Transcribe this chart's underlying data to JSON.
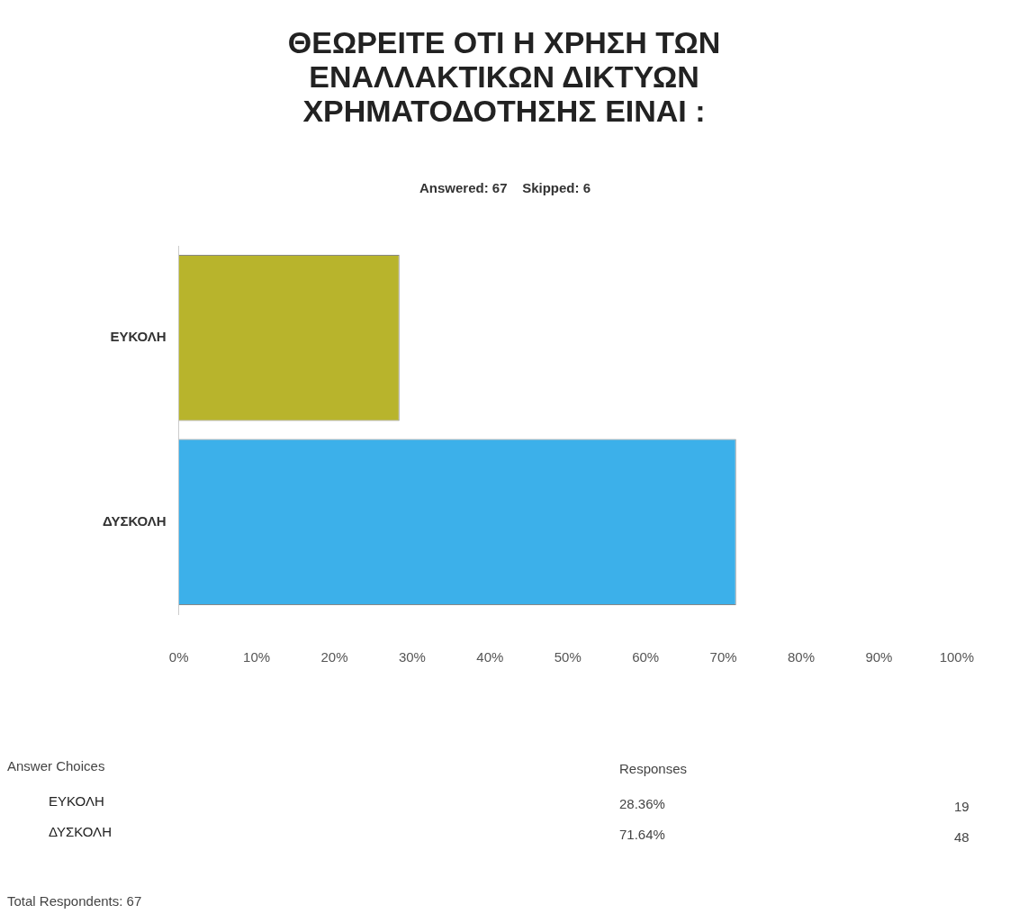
{
  "chart_data": {
    "type": "bar",
    "orientation": "horizontal",
    "title": "ΘΕΩΡΕΙΤΕ ΟΤΙ Η ΧΡΗΣΗ ΤΩΝ ΕΝΑΛΛΑΚΤΙΚΩΝ ΔΙΚΤΥΩΝ ΧΡΗΜΑΤΟΔΟΤΗΣΗΣ ΕΙΝΑΙ :",
    "subtitle": "Answered: 67    Skipped: 6",
    "categories": [
      "ΕΥΚΟΛΗ",
      "ΔΥΣΚΟΛΗ"
    ],
    "values": [
      28.36,
      71.64
    ],
    "colors": [
      "#b8b42c",
      "#3cb0ea"
    ],
    "xlim": [
      0,
      100
    ],
    "xticks": [
      {
        "value": 0,
        "label": "0%"
      },
      {
        "value": 10,
        "label": "10%"
      },
      {
        "value": 20,
        "label": "20%"
      },
      {
        "value": 30,
        "label": "30%"
      },
      {
        "value": 40,
        "label": "40%"
      },
      {
        "value": 50,
        "label": "50%"
      },
      {
        "value": 60,
        "label": "60%"
      },
      {
        "value": 70,
        "label": "70%"
      },
      {
        "value": 80,
        "label": "80%"
      },
      {
        "value": 90,
        "label": "90%"
      },
      {
        "value": 100,
        "label": "100%"
      }
    ],
    "annotations": [
      "Answer Choices",
      "Responses",
      "28.36%",
      "19",
      "71.64%",
      "48",
      "Total Respondents: 67"
    ]
  }
}
